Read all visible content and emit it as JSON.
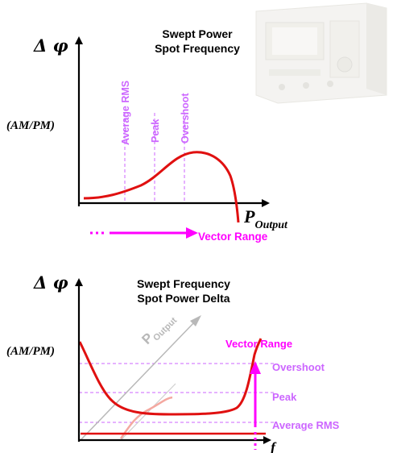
{
  "colors": {
    "axis": "#000000",
    "curve": "#e01010",
    "magenta": "#ff00ff",
    "label_purple": "#cc66ff",
    "grey_arrow": "#b0b0b0",
    "pink_curve": "#f4a8a0"
  },
  "top": {
    "delta_phi": "Δ φ",
    "am_pm": "(AM/PM)",
    "title_line1": "Swept Power",
    "title_line2": "Spot Frequency",
    "marker_average_rms": "Average RMS",
    "marker_peak": "Peak",
    "marker_overshoot": "Overshoot",
    "x_label_main": "P",
    "x_label_sub": "Output",
    "vector_range": "Vector Range"
  },
  "bottom": {
    "delta_phi": "Δ φ",
    "am_pm": "(AM/PM)",
    "title_line1": "Swept Frequency",
    "title_line2": "Spot Power Delta",
    "p_output_main": "P",
    "p_output_sub": "Output",
    "vector_range": "Vector Range",
    "level_overshoot": "Overshoot",
    "level_peak": "Peak",
    "level_average_rms": "Average RMS",
    "x_label": "f"
  },
  "instrument_icon": "network-analyzer-icon"
}
